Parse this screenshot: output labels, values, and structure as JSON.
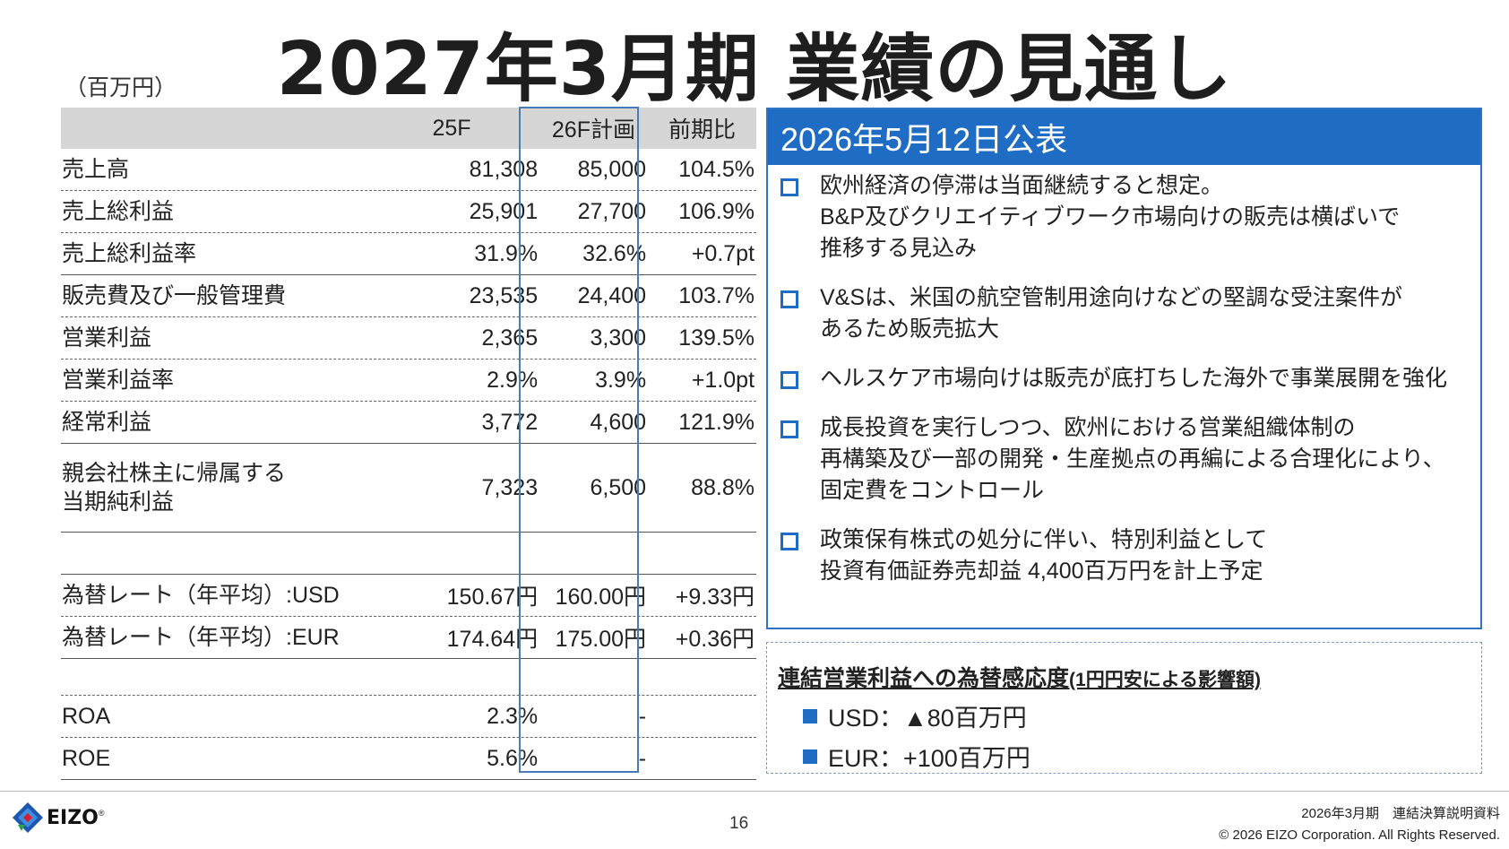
{
  "title": "2027年3月期 業績の見通し",
  "unit": "（百万円）",
  "table": {
    "headers": [
      "",
      "25F",
      "26F計画",
      "前期比"
    ],
    "rows": [
      {
        "label": "売上高",
        "v25": "81,308",
        "v26": "85,000",
        "ratio": "104.5%"
      },
      {
        "label": "売上総利益",
        "v25": "25,901",
        "v26": "27,700",
        "ratio": "106.9%"
      },
      {
        "label": "売上総利益率",
        "v25": "31.9%",
        "v26": "32.6%",
        "ratio": "+0.7pt"
      },
      {
        "label": "販売費及び一般管理費",
        "v25": "23,535",
        "v26": "24,400",
        "ratio": "103.7%"
      },
      {
        "label": "営業利益",
        "v25": "2,365",
        "v26": "3,300",
        "ratio": "139.5%"
      },
      {
        "label": "営業利益率",
        "v25": "2.9%",
        "v26": "3.9%",
        "ratio": "+1.0pt"
      },
      {
        "label": "経常利益",
        "v25": "3,772",
        "v26": "4,600",
        "ratio": "121.9%"
      },
      {
        "label": "親会社株主に帰属する\n当期純利益",
        "v25": "7,323",
        "v26": "6,500",
        "ratio": "88.8%"
      },
      {
        "label": "",
        "v25": "",
        "v26": "",
        "ratio": ""
      },
      {
        "label": "為替レート（年平均）:USD",
        "v25": "150.67円",
        "v26": "160.00円",
        "ratio": "+9.33円"
      },
      {
        "label": "為替レート（年平均）:EUR",
        "v25": "174.64円",
        "v26": "175.00円",
        "ratio": "+0.36円"
      },
      {
        "label": "",
        "v25": "",
        "v26": "",
        "ratio": ""
      },
      {
        "label": "ROA",
        "v25": "2.3%",
        "v26": "-",
        "ratio": ""
      },
      {
        "label": "ROE",
        "v25": "5.6%",
        "v26": "-",
        "ratio": ""
      }
    ]
  },
  "panel": {
    "heading": "2026年5月12日公表",
    "bullets": [
      "欧州経済の停滞は当面継続すると想定。\nB&P及びクリエイティブワーク市場向けの販売は横ばいで\n推移する見込み",
      "V&Sは、米国の航空管制用途向けなどの堅調な受注案件が\nあるため販売拡大",
      "ヘルスケア市場向けは販売が底打ちした海外で事業展開を強化",
      "成長投資を実行しつつ、欧州における営業組織体制の\n再構築及び一部の開発・生産拠点の再編による合理化により、\n固定費をコントロール",
      "政策保有株式の処分に伴い、特別利益として\n投資有価証券売却益 4,400百万円を計上予定"
    ]
  },
  "fx": {
    "title_main": "連結営業利益への為替感応度",
    "title_sub": "(1円円安による影響額)",
    "items": [
      "USD：▲80百万円",
      "EUR：+100百万円"
    ]
  },
  "footer": {
    "logo": "EIZO",
    "logo_mark": "®",
    "page": "16",
    "doc": "2026年3月期　連結決算説明資料",
    "copyright": "© 2026 EIZO Corporation. All Rights Reserved."
  },
  "colors": {
    "accent": "#1f6cc4",
    "header_gray": "#d6d6d6"
  }
}
